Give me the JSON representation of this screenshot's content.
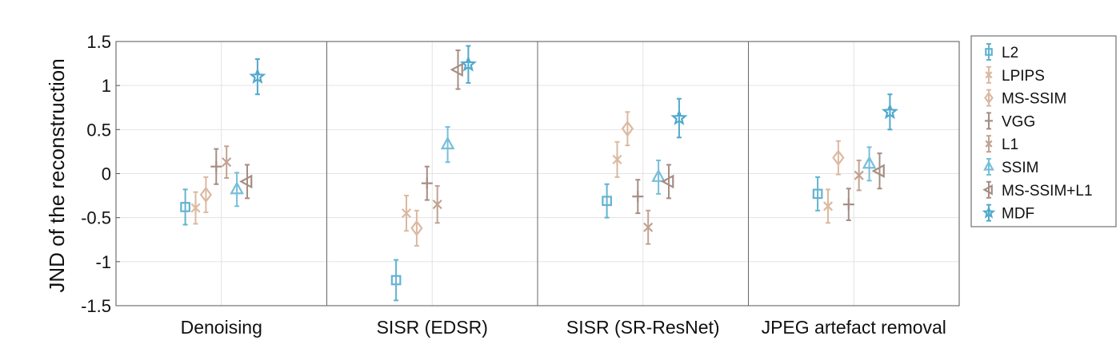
{
  "chart_data": {
    "type": "scatter",
    "ylabel": "JND of the reconstruction",
    "ylim": [
      -1.5,
      1.5
    ],
    "yticks": [
      1.5,
      1,
      0.5,
      0,
      -0.5,
      -1,
      -1.5
    ],
    "ytick_labels": [
      "1.5",
      "1",
      "0.5",
      "0",
      "-0.5",
      "-1",
      "-1.5"
    ],
    "grid": true,
    "legend_position": "right",
    "categories": [
      "Denoising",
      "SISR (EDSR)",
      "SISR (SR-ResNet)",
      "JPEG artefact removal"
    ],
    "series": [
      {
        "name": "L2",
        "marker": "square",
        "color": "#62b3d2",
        "values": [
          -0.38,
          -1.21,
          -0.31,
          -0.23
        ],
        "err": [
          0.2,
          0.23,
          0.19,
          0.19
        ]
      },
      {
        "name": "LPIPS",
        "marker": "asterisk",
        "color": "#dbb9a0",
        "values": [
          -0.39,
          -0.45,
          0.16,
          -0.37
        ],
        "err": [
          0.18,
          0.2,
          0.2,
          0.19
        ]
      },
      {
        "name": "MS-SSIM",
        "marker": "diamond",
        "color": "#dbb9a0",
        "values": [
          -0.24,
          -0.62,
          0.51,
          0.18
        ],
        "err": [
          0.2,
          0.2,
          0.19,
          0.19
        ]
      },
      {
        "name": "VGG",
        "marker": "plus",
        "color": "#a68d83",
        "values": [
          0.08,
          -0.11,
          -0.26,
          -0.35
        ],
        "err": [
          0.2,
          0.19,
          0.19,
          0.18
        ]
      },
      {
        "name": "L1",
        "marker": "cross",
        "color": "#c2a292",
        "values": [
          0.13,
          -0.35,
          -0.61,
          -0.02
        ],
        "err": [
          0.18,
          0.21,
          0.19,
          0.17
        ]
      },
      {
        "name": "SSIM",
        "marker": "triangle",
        "color": "#76bfd9",
        "values": [
          -0.18,
          0.33,
          -0.04,
          0.11
        ],
        "err": [
          0.19,
          0.2,
          0.19,
          0.19
        ]
      },
      {
        "name": "MS-SSIM+L1",
        "marker": "triangle-left",
        "color": "#a68d83",
        "values": [
          -0.09,
          1.18,
          -0.09,
          0.03
        ],
        "err": [
          0.19,
          0.22,
          0.19,
          0.2
        ]
      },
      {
        "name": "MDF",
        "marker": "star",
        "color": "#51a9cc",
        "values": [
          1.1,
          1.24,
          0.63,
          0.7
        ],
        "err": [
          0.2,
          0.21,
          0.22,
          0.2
        ]
      }
    ]
  }
}
